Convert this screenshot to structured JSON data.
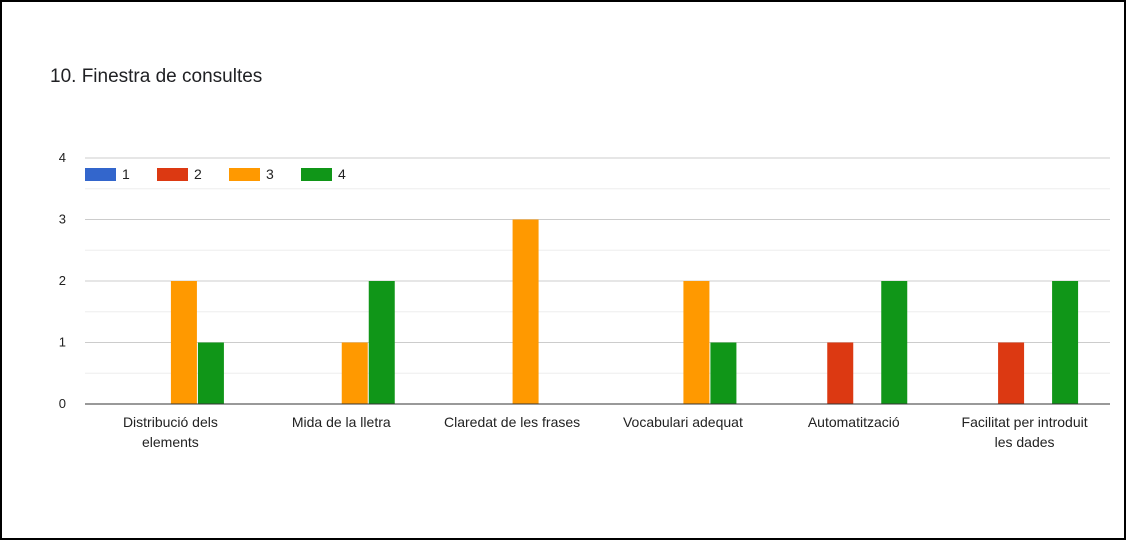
{
  "card": {
    "title": "10. Finestra de consultes"
  },
  "chart_data": {
    "type": "bar",
    "title": "10. Finestra de consultes",
    "categories": [
      [
        "Distribució dels",
        "elements"
      ],
      [
        "Mida de la lletra"
      ],
      [
        "Claredat de les frases"
      ],
      [
        "Vocabulari adequat"
      ],
      [
        "Automatització"
      ],
      [
        "Facilitat per introduit",
        "les dades"
      ]
    ],
    "series": [
      {
        "name": "1",
        "color": "#3366cc",
        "values": [
          0,
          0,
          0,
          0,
          0,
          0
        ]
      },
      {
        "name": "2",
        "color": "#dc3912",
        "values": [
          0,
          0,
          0,
          0,
          1,
          1
        ]
      },
      {
        "name": "3",
        "color": "#ff9900",
        "values": [
          2,
          1,
          3,
          2,
          0,
          0
        ]
      },
      {
        "name": "4",
        "color": "#109618",
        "values": [
          1,
          2,
          0,
          1,
          2,
          2
        ]
      }
    ],
    "ylim": [
      0,
      4
    ],
    "yticks": [
      0,
      1,
      2,
      3,
      4
    ],
    "grid": true,
    "minor_grid": true,
    "legend": "top-left",
    "xlabel": "",
    "ylabel": ""
  }
}
